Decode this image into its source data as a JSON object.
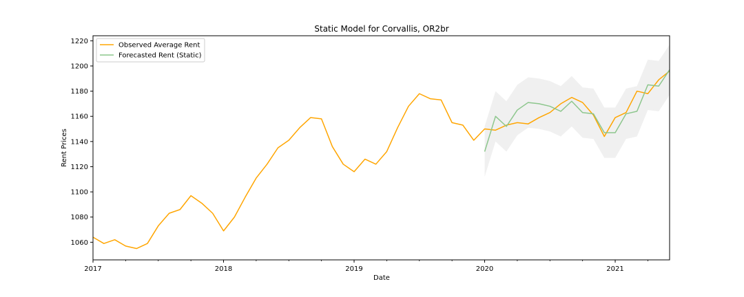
{
  "chart_data": {
    "type": "line",
    "title": "Static Model for Corvallis, OR2br",
    "xlabel": "Date",
    "ylabel": "Rent Prices",
    "xlim": [
      2017.0,
      2021.4167
    ],
    "ylim": [
      1046,
      1224
    ],
    "x_ticks": [
      {
        "value": 2017,
        "label": "2017"
      },
      {
        "value": 2018,
        "label": "2018"
      },
      {
        "value": 2019,
        "label": "2019"
      },
      {
        "value": 2020,
        "label": "2020"
      },
      {
        "value": 2021,
        "label": "2021"
      }
    ],
    "y_ticks": [
      1060,
      1080,
      1100,
      1120,
      1140,
      1160,
      1180,
      1200,
      1220
    ],
    "legend": {
      "location": "upper-left"
    },
    "series": [
      {
        "name": "Observed Average Rent",
        "color": "#FFA500",
        "x": [
          2017.0,
          2017.0833,
          2017.1667,
          2017.25,
          2017.3333,
          2017.4167,
          2017.5,
          2017.5833,
          2017.6667,
          2017.75,
          2017.8333,
          2017.9167,
          2018.0,
          2018.0833,
          2018.1667,
          2018.25,
          2018.3333,
          2018.4167,
          2018.5,
          2018.5833,
          2018.6667,
          2018.75,
          2018.8333,
          2018.9167,
          2019.0,
          2019.0833,
          2019.1667,
          2019.25,
          2019.3333,
          2019.4167,
          2019.5,
          2019.5833,
          2019.6667,
          2019.75,
          2019.8333,
          2019.9167,
          2020.0,
          2020.0833,
          2020.1667,
          2020.25,
          2020.3333,
          2020.4167,
          2020.5,
          2020.5833,
          2020.6667,
          2020.75,
          2020.8333,
          2020.9167,
          2021.0,
          2021.0833,
          2021.1667,
          2021.25,
          2021.3333,
          2021.4167
        ],
        "values": [
          1064,
          1059,
          1062,
          1057,
          1055,
          1059,
          1073,
          1083,
          1086,
          1097,
          1091,
          1083,
          1069,
          1080,
          1096,
          1111,
          1122,
          1135,
          1141,
          1151,
          1159,
          1158,
          1136,
          1122,
          1116,
          1126,
          1122,
          1132,
          1151,
          1168,
          1178,
          1174,
          1173,
          1155,
          1153,
          1141,
          1150,
          1149,
          1153,
          1155,
          1154,
          1159,
          1163,
          1170,
          1175,
          1171,
          1161,
          1144,
          1159,
          1163,
          1180,
          1178,
          1189,
          1196
        ]
      },
      {
        "name": "Forecasted Rent (Static)",
        "color": "#8CC68C",
        "x": [
          2020.0,
          2020.0833,
          2020.1667,
          2020.25,
          2020.3333,
          2020.4167,
          2020.5,
          2020.5833,
          2020.6667,
          2020.75,
          2020.8333,
          2020.9167,
          2021.0,
          2021.0833,
          2021.1667,
          2021.25,
          2021.3333,
          2021.4167
        ],
        "values": [
          1132,
          1160,
          1152,
          1165,
          1171,
          1170,
          1168,
          1164,
          1172,
          1163,
          1162,
          1147,
          1147,
          1162,
          1164,
          1185,
          1184,
          1197
        ],
        "lower": [
          1112,
          1140,
          1132,
          1145,
          1151,
          1150,
          1148,
          1144,
          1152,
          1143,
          1142,
          1127,
          1127,
          1142,
          1144,
          1165,
          1164,
          1177
        ],
        "upper": [
          1152,
          1180,
          1172,
          1185,
          1191,
          1190,
          1188,
          1184,
          1192,
          1183,
          1182,
          1167,
          1167,
          1182,
          1184,
          1205,
          1204,
          1217
        ],
        "band_color": "#EBEBEB"
      }
    ]
  }
}
